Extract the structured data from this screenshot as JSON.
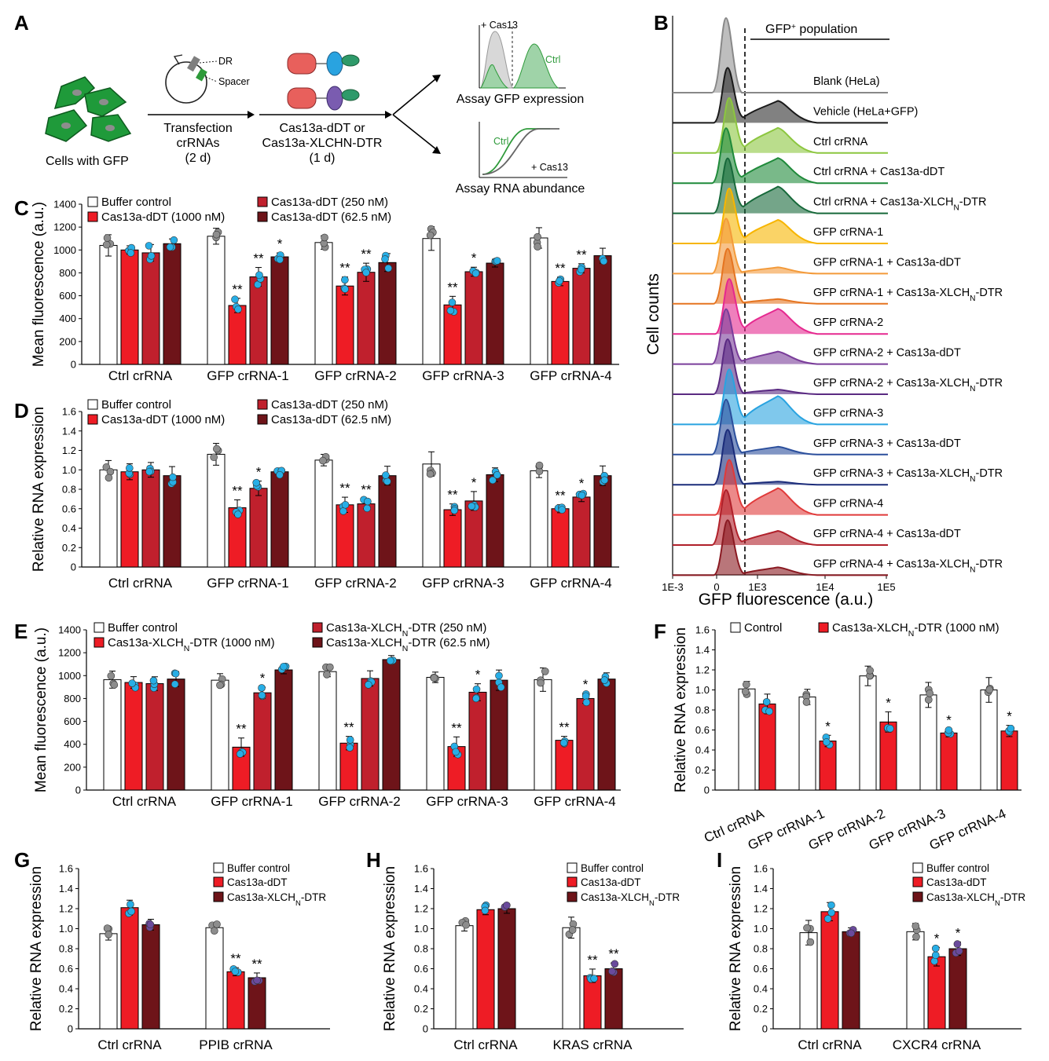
{
  "panel_labels": [
    "A",
    "B",
    "C",
    "D",
    "E",
    "F",
    "G",
    "H",
    "I"
  ],
  "colors": {
    "white_bar": "#ffffff",
    "red": "#ee1c25",
    "mid_red": "#c0202d",
    "dark_red": "#6e1419",
    "cyan_dot": "#27aee6",
    "purple_dot": "#6a4a9c",
    "grey_dot": "#8d8d8d"
  },
  "schematic": {
    "cells_label": "Cells with GFP",
    "dr_label": "DR",
    "spacer_label": "Spacer",
    "transfection_label": [
      "Transfection",
      "crRNAs",
      "(2 d)"
    ],
    "treatment_label": [
      "Cas13a-dDT or",
      "Cas13a-XLCHN-DTR",
      "(1 d)"
    ],
    "cas13_top": "+ Cas13",
    "ctrl_top": "Ctrl",
    "assay_gfp": "Assay GFP expression",
    "ctrl_bottom": "Ctrl",
    "cas13_bottom": "+ Cas13",
    "assay_rna": "Assay RNA abundance"
  },
  "chart_data": [
    {
      "panel": "C",
      "type": "bar",
      "ylabel": "Mean fluorescence (a.u.)",
      "ylim": [
        0,
        1400
      ],
      "yticks": [
        0,
        200,
        400,
        600,
        800,
        1000,
        1200,
        1400
      ],
      "categories": [
        "Ctrl crRNA",
        "GFP crRNA-1",
        "GFP crRNA-2",
        "GFP crRNA-3",
        "GFP crRNA-4"
      ],
      "series": [
        {
          "name": "Buffer control",
          "values": [
            1040,
            1120,
            1065,
            1100,
            1105
          ]
        },
        {
          "name": "Cas13a-dDT (1000 nM)",
          "values": [
            1000,
            515,
            685,
            520,
            725
          ]
        },
        {
          "name": "Cas13a-dDT (250 nM)",
          "values": [
            975,
            765,
            805,
            810,
            840
          ]
        },
        {
          "name": "Cas13a-dDT (62.5 nM)",
          "values": [
            1055,
            940,
            890,
            885,
            950
          ]
        }
      ],
      "significance": [
        [
          "",
          "",
          "",
          ""
        ],
        [
          "",
          "**",
          "**",
          "*"
        ],
        [
          "",
          "**",
          "**",
          ""
        ],
        [
          "",
          "**",
          "*",
          ""
        ],
        [
          "",
          "**",
          "**",
          ""
        ]
      ]
    },
    {
      "panel": "D",
      "type": "bar",
      "ylabel": "Relative RNA expression",
      "ylim": [
        0,
        1.6
      ],
      "yticks": [
        "0",
        "0.2",
        "0.4",
        "0.6",
        "0.8",
        "1.0",
        "1.2",
        "1.4",
        "1.6"
      ],
      "categories": [
        "Ctrl crRNA",
        "GFP crRNA-1",
        "GFP crRNA-2",
        "GFP crRNA-3",
        "GFP crRNA-4"
      ],
      "series": [
        {
          "name": "Buffer control",
          "values": [
            1.0,
            1.16,
            1.1,
            1.06,
            0.99
          ]
        },
        {
          "name": "Cas13a-dDT (1000 nM)",
          "values": [
            0.98,
            0.61,
            0.64,
            0.59,
            0.6
          ]
        },
        {
          "name": "Cas13a-dDT (250 nM)",
          "values": [
            1.0,
            0.81,
            0.65,
            0.68,
            0.72
          ]
        },
        {
          "name": "Cas13a-dDT (62.5 nM)",
          "values": [
            0.94,
            0.98,
            0.94,
            0.95,
            0.94
          ]
        }
      ],
      "significance": [
        [
          "",
          "",
          "",
          ""
        ],
        [
          "",
          "**",
          "*",
          ""
        ],
        [
          "",
          "**",
          "**",
          ""
        ],
        [
          "",
          "**",
          "*",
          ""
        ],
        [
          "",
          "**",
          "*",
          ""
        ]
      ]
    },
    {
      "panel": "E",
      "type": "bar",
      "ylabel": "Mean fluorescence (a.u.)",
      "ylim": [
        0,
        1400
      ],
      "yticks": [
        0,
        200,
        400,
        600,
        800,
        1000,
        1200,
        1400
      ],
      "categories": [
        "Ctrl crRNA",
        "GFP crRNA-1",
        "GFP crRNA-2",
        "GFP crRNA-3",
        "GFP crRNA-4"
      ],
      "series": [
        {
          "name": "Buffer control",
          "values": [
            965,
            960,
            1035,
            985,
            965
          ]
        },
        {
          "name": "Cas13a-XLCHN-DTR (1000 nM)",
          "values": [
            940,
            375,
            410,
            380,
            435
          ]
        },
        {
          "name": "Cas13a-XLCHN-DTR (250 nM)",
          "values": [
            930,
            850,
            975,
            855,
            800
          ]
        },
        {
          "name": "Cas13a-XLCHN-DTR (62.5 nM)",
          "values": [
            970,
            1050,
            1140,
            960,
            970
          ]
        }
      ],
      "significance": [
        [
          "",
          "",
          "",
          ""
        ],
        [
          "",
          "**",
          "*",
          ""
        ],
        [
          "",
          "**",
          "",
          ""
        ],
        [
          "",
          "**",
          "*",
          ""
        ],
        [
          "",
          "**",
          "*",
          ""
        ]
      ]
    },
    {
      "panel": "F",
      "type": "bar",
      "ylabel": "Relative RNA expression",
      "ylim": [
        0,
        1.6
      ],
      "yticks": [
        "0",
        "0.2",
        "0.4",
        "0.6",
        "0.8",
        "1.0",
        "1.2",
        "1.4",
        "1.6"
      ],
      "categories": [
        "Ctrl crRNA",
        "GFP crRNA-1",
        "GFP crRNA-2",
        "GFP crRNA-3",
        "GFP crRNA-4"
      ],
      "series": [
        {
          "name": "Control",
          "values": [
            1.01,
            0.93,
            1.14,
            0.95,
            1.0
          ]
        },
        {
          "name": "Cas13a-XLCHN-DTR (1000 nM)",
          "values": [
            0.86,
            0.49,
            0.68,
            0.57,
            0.59
          ]
        }
      ],
      "significance": [
        [
          "",
          ""
        ],
        [
          "",
          "*"
        ],
        [
          "",
          "*"
        ],
        [
          "",
          "*"
        ],
        [
          "",
          "*"
        ]
      ]
    },
    {
      "panel": "G",
      "type": "bar",
      "ylabel": "Relative RNA expression",
      "ylim": [
        0,
        1.6
      ],
      "yticks": [
        "0",
        "0.2",
        "0.4",
        "0.6",
        "0.8",
        "1.0",
        "1.2",
        "1.4",
        "1.6"
      ],
      "categories": [
        "Ctrl crRNA",
        "PPIB crRNA"
      ],
      "series": [
        {
          "name": "Buffer control",
          "values": [
            0.95,
            1.01
          ]
        },
        {
          "name": "Cas13a-dDT",
          "values": [
            1.21,
            0.57
          ]
        },
        {
          "name": "Cas13a-XLCHN-DTR",
          "values": [
            1.04,
            0.51
          ]
        }
      ],
      "significance": [
        [
          "",
          "",
          ""
        ],
        [
          "",
          "**",
          "**"
        ]
      ]
    },
    {
      "panel": "H",
      "type": "bar",
      "ylabel": "Relative RNA expression",
      "ylim": [
        0,
        1.6
      ],
      "yticks": [
        "0",
        "0.2",
        "0.4",
        "0.6",
        "0.8",
        "1.0",
        "1.2",
        "1.4",
        "1.6"
      ],
      "categories": [
        "Ctrl crRNA",
        "KRAS crRNA"
      ],
      "series": [
        {
          "name": "Buffer control",
          "values": [
            1.03,
            1.01
          ]
        },
        {
          "name": "Cas13a-dDT",
          "values": [
            1.19,
            0.53
          ]
        },
        {
          "name": "Cas13a-XLCHN-DTR",
          "values": [
            1.2,
            0.6
          ]
        }
      ],
      "significance": [
        [
          "",
          "",
          ""
        ],
        [
          "",
          "**",
          "**"
        ]
      ]
    },
    {
      "panel": "I",
      "type": "bar",
      "ylabel": "Relative RNA expression",
      "ylim": [
        0,
        1.6
      ],
      "yticks": [
        "0",
        "0.2",
        "0.4",
        "0.6",
        "0.8",
        "1.0",
        "1.2",
        "1.4",
        "1.6"
      ],
      "categories": [
        "Ctrl crRNA",
        "CXCR4 crRNA"
      ],
      "series": [
        {
          "name": "Buffer control",
          "values": [
            0.96,
            0.97
          ]
        },
        {
          "name": "Cas13a-dDT",
          "values": [
            1.17,
            0.72
          ]
        },
        {
          "name": "Cas13a-XLCHN-DTR",
          "values": [
            0.97,
            0.8
          ]
        }
      ],
      "significance": [
        [
          "",
          "",
          ""
        ],
        [
          "",
          "*",
          "*"
        ]
      ]
    },
    {
      "panel": "B",
      "type": "area",
      "xlabel": "GFP fluorescence (a.u.)",
      "ylabel": "Cell counts",
      "xscale": "log",
      "xticks": [
        "1E-3",
        "0",
        "1E3",
        "1E4",
        "1E5"
      ],
      "gate_label": "GFP+ population",
      "series": [
        {
          "name": "Blank (HeLa)",
          "color": "#888888"
        },
        {
          "name": "Vehicle (HeLa+GFP)",
          "color": "#1a1a1a"
        },
        {
          "name": "Ctrl crRNA",
          "color": "#8cc63f"
        },
        {
          "name": "Ctrl crRNA + Cas13a-dDT",
          "color": "#1f8a3a"
        },
        {
          "name": "Ctrl crRNA + Cas13a-XLCHN-DTR",
          "color": "#17693a"
        },
        {
          "name": "GFP crRNA-1",
          "color": "#f7b500"
        },
        {
          "name": "GFP crRNA-1 + Cas13a-dDT",
          "color": "#f39a3a"
        },
        {
          "name": "GFP crRNA-1 + Cas13a-XLCHN-DTR",
          "color": "#e57420"
        },
        {
          "name": "GFP crRNA-2",
          "color": "#e5298f"
        },
        {
          "name": "GFP crRNA-2 + Cas13a-dDT",
          "color": "#7a3d9a"
        },
        {
          "name": "GFP crRNA-2 + Cas13a-XLCHN-DTR",
          "color": "#5a2a82"
        },
        {
          "name": "GFP crRNA-3",
          "color": "#29a3e0"
        },
        {
          "name": "GFP crRNA-3 + Cas13a-dDT",
          "color": "#2b4f9c"
        },
        {
          "name": "GFP crRNA-3 + Cas13a-XLCHN-DTR",
          "color": "#1b2c7a"
        },
        {
          "name": "GFP crRNA-4",
          "color": "#e03a3a"
        },
        {
          "name": "GFP crRNA-4 + Cas13a-dDT",
          "color": "#b0202a"
        },
        {
          "name": "GFP crRNA-4 + Cas13a-XLCHN-DTR",
          "color": "#8a1a22"
        }
      ]
    }
  ]
}
